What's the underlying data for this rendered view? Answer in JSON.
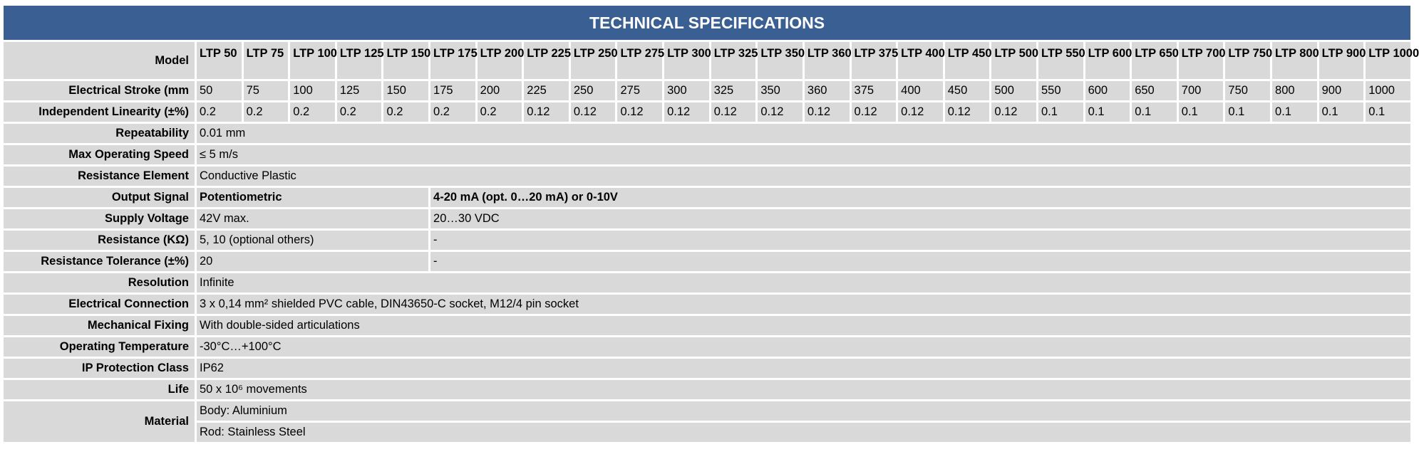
{
  "title": "TECHNICAL SPECIFICATIONS",
  "table": {
    "model_row": {
      "label": "Model",
      "values": [
        "LTP 50",
        "LTP 75",
        "LTP 100",
        "LTP 125",
        "LTP 150",
        "LTP 175",
        "LTP 200",
        "LTP 225",
        "LTP 250",
        "LTP 275",
        "LTP 300",
        "LTP 325",
        "LTP 350",
        "LTP 360",
        "LTP 375",
        "LTP 400",
        "LTP 450",
        "LTP 500",
        "LTP 550",
        "LTP 600",
        "LTP 650",
        "LTP 700",
        "LTP 750",
        "LTP 800",
        "LTP 900",
        "LTP 1000"
      ]
    },
    "stroke_row": {
      "label": "Electrical Stroke (mm",
      "values": [
        "50",
        "75",
        "100",
        "125",
        "150",
        "175",
        "200",
        "225",
        "250",
        "275",
        "300",
        "325",
        "350",
        "360",
        "375",
        "400",
        "450",
        "500",
        "550",
        "600",
        "650",
        "700",
        "750",
        "800",
        "900",
        "1000"
      ]
    },
    "linearity_row": {
      "label": "Independent Linearity (±%)",
      "values": [
        "0.2",
        "0.2",
        "0.2",
        "0.2",
        "0.2",
        "0.2",
        "0.2",
        "0.12",
        "0.12",
        "0.12",
        "0.12",
        "0.12",
        "0.12",
        "0.12",
        "0.12",
        "0.12",
        "0.12",
        "0.12",
        "0.1",
        "0.1",
        "0.1",
        "0.1",
        "0.1",
        "0.1",
        "0.1",
        "0.1"
      ]
    },
    "rows": [
      {
        "label": "Repeatability",
        "cells": [
          "0.01 mm"
        ]
      },
      {
        "label": "Max Operating Speed",
        "cells": [
          "≤ 5 m/s"
        ]
      },
      {
        "label": "Resistance Element",
        "cells": [
          "Conductive Plastic"
        ]
      },
      {
        "label": "Output Signal",
        "cells": [
          "Potentiometric",
          "4-20 mA (opt. 0…20 mA) or 0-10V"
        ]
      },
      {
        "label": "Supply Voltage",
        "cells": [
          "42V max.",
          "20…30 VDC"
        ]
      },
      {
        "label": "Resistance (KΩ)",
        "cells": [
          "5, 10 (optional others)",
          "-"
        ]
      },
      {
        "label": "Resistance Tolerance (±%)",
        "cells": [
          "20",
          "-"
        ]
      },
      {
        "label": "Resolution",
        "cells": [
          "Infinite"
        ]
      },
      {
        "label": "Electrical Connection",
        "cells": [
          "3 x 0,14 mm² shielded PVC cable, DIN43650-C socket, M12/4 pin socket"
        ]
      },
      {
        "label": "Mechanical Fixing",
        "cells": [
          "With double-sided articulations"
        ]
      },
      {
        "label": "Operating Temperature",
        "cells": [
          "-30°C…+100°C"
        ]
      },
      {
        "label": "IP Protection Class",
        "cells": [
          "IP62"
        ]
      },
      {
        "label": "Life",
        "cells": [
          "50 x 10⁶ movements"
        ]
      }
    ],
    "material": {
      "label": "Material",
      "lines": [
        "Body: Aluminium",
        "Rod: Stainless Steel"
      ]
    }
  }
}
